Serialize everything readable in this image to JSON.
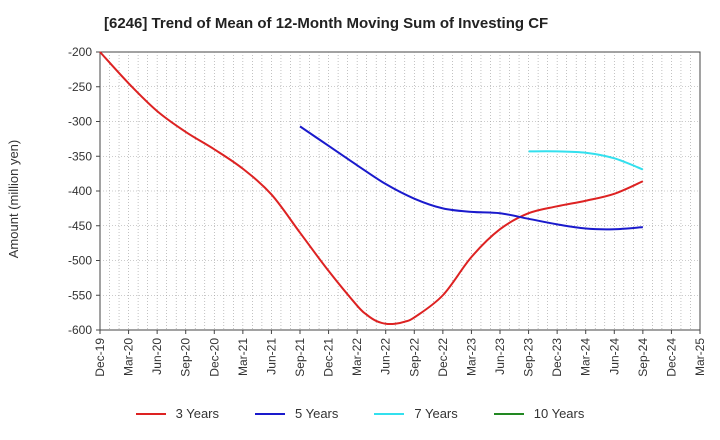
{
  "chart_data": {
    "type": "line",
    "title": "[6246]  Trend of Mean of 12-Month Moving Sum of Investing CF",
    "ylabel": "Amount (million yen)",
    "xlabel": "",
    "ylim": [
      -600,
      -200
    ],
    "yticks": [
      -200,
      -250,
      -300,
      -350,
      -400,
      -450,
      -500,
      -550,
      -600
    ],
    "xticks": [
      "Dec-19",
      "Mar-20",
      "Jun-20",
      "Sep-20",
      "Dec-20",
      "Mar-21",
      "Jun-21",
      "Sep-21",
      "Dec-21",
      "Mar-22",
      "Jun-22",
      "Sep-22",
      "Dec-22",
      "Mar-23",
      "Jun-23",
      "Sep-23",
      "Dec-23",
      "Mar-24",
      "Jun-24",
      "Sep-24",
      "Dec-24",
      "Mar-25"
    ],
    "grid": true,
    "legend_position": "bottom",
    "series": [
      {
        "name": "3 Years",
        "color": "#dd2222",
        "x": [
          "Dec-19",
          "Mar-20",
          "Jun-20",
          "Sep-20",
          "Dec-20",
          "Mar-21",
          "Jun-21",
          "Sep-21",
          "Dec-21",
          "Mar-22",
          "Apr-22",
          "May-22",
          "Jun-22",
          "Jul-22",
          "Aug-22",
          "Sep-22",
          "Dec-22",
          "Mar-23",
          "Jun-23",
          "Sep-23",
          "Dec-23",
          "Mar-24",
          "Jun-24",
          "Sep-24"
        ],
        "values": [
          -200,
          -245,
          -285,
          -315,
          -340,
          -368,
          -405,
          -460,
          -515,
          -565,
          -578,
          -587,
          -591,
          -591,
          -588,
          -582,
          -550,
          -495,
          -455,
          -432,
          -422,
          -414,
          -404,
          -386
        ]
      },
      {
        "name": "5 Years",
        "color": "#1a1acc",
        "x": [
          "Sep-21",
          "Dec-21",
          "Mar-22",
          "Jun-22",
          "Sep-22",
          "Dec-22",
          "Mar-23",
          "Jun-23",
          "Sep-23",
          "Dec-23",
          "Mar-24",
          "Jun-24",
          "Sep-24"
        ],
        "values": [
          -307,
          -335,
          -363,
          -390,
          -411,
          -425,
          -430,
          -432,
          -440,
          -448,
          -454,
          -455,
          -452
        ]
      },
      {
        "name": "7 Years",
        "color": "#33e0ee",
        "x": [
          "Sep-23",
          "Dec-23",
          "Mar-24",
          "Jun-24",
          "Sep-24"
        ],
        "values": [
          -343,
          -343,
          -345,
          -353,
          -369
        ]
      },
      {
        "name": "10 Years",
        "color": "#228822",
        "x": [],
        "values": []
      }
    ]
  }
}
